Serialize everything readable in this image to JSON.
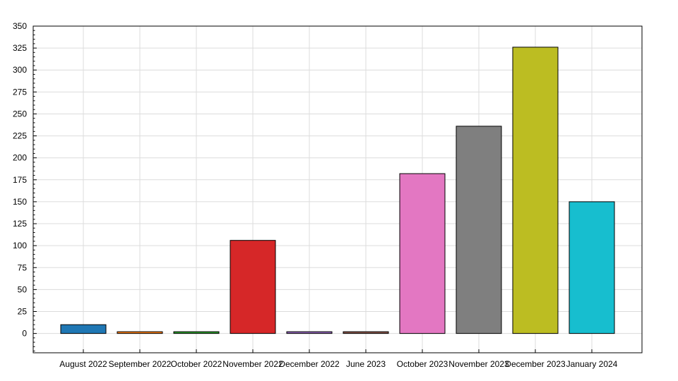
{
  "chart_data": {
    "type": "bar",
    "categories": [
      "August 2022",
      "September 2022",
      "October 2022",
      "November 2022",
      "December 2022",
      "June 2023",
      "October 2023",
      "November 2023",
      "December 2023",
      "January 2024"
    ],
    "values": [
      10,
      2,
      2,
      106,
      2,
      2,
      182,
      236,
      326,
      150
    ],
    "colors": [
      "#1f77b4",
      "#ff7f0e",
      "#2ca02c",
      "#d62728",
      "#9467bd",
      "#8c564b",
      "#e377c2",
      "#7f7f7f",
      "#bcbd22",
      "#17becf"
    ],
    "title": "",
    "xlabel": "",
    "ylabel": "",
    "ylim": [
      -22,
      350
    ],
    "yticks": [
      0,
      25,
      50,
      75,
      100,
      125,
      150,
      175,
      200,
      225,
      250,
      275,
      300,
      325,
      350
    ],
    "grid": true,
    "legend": "none"
  }
}
